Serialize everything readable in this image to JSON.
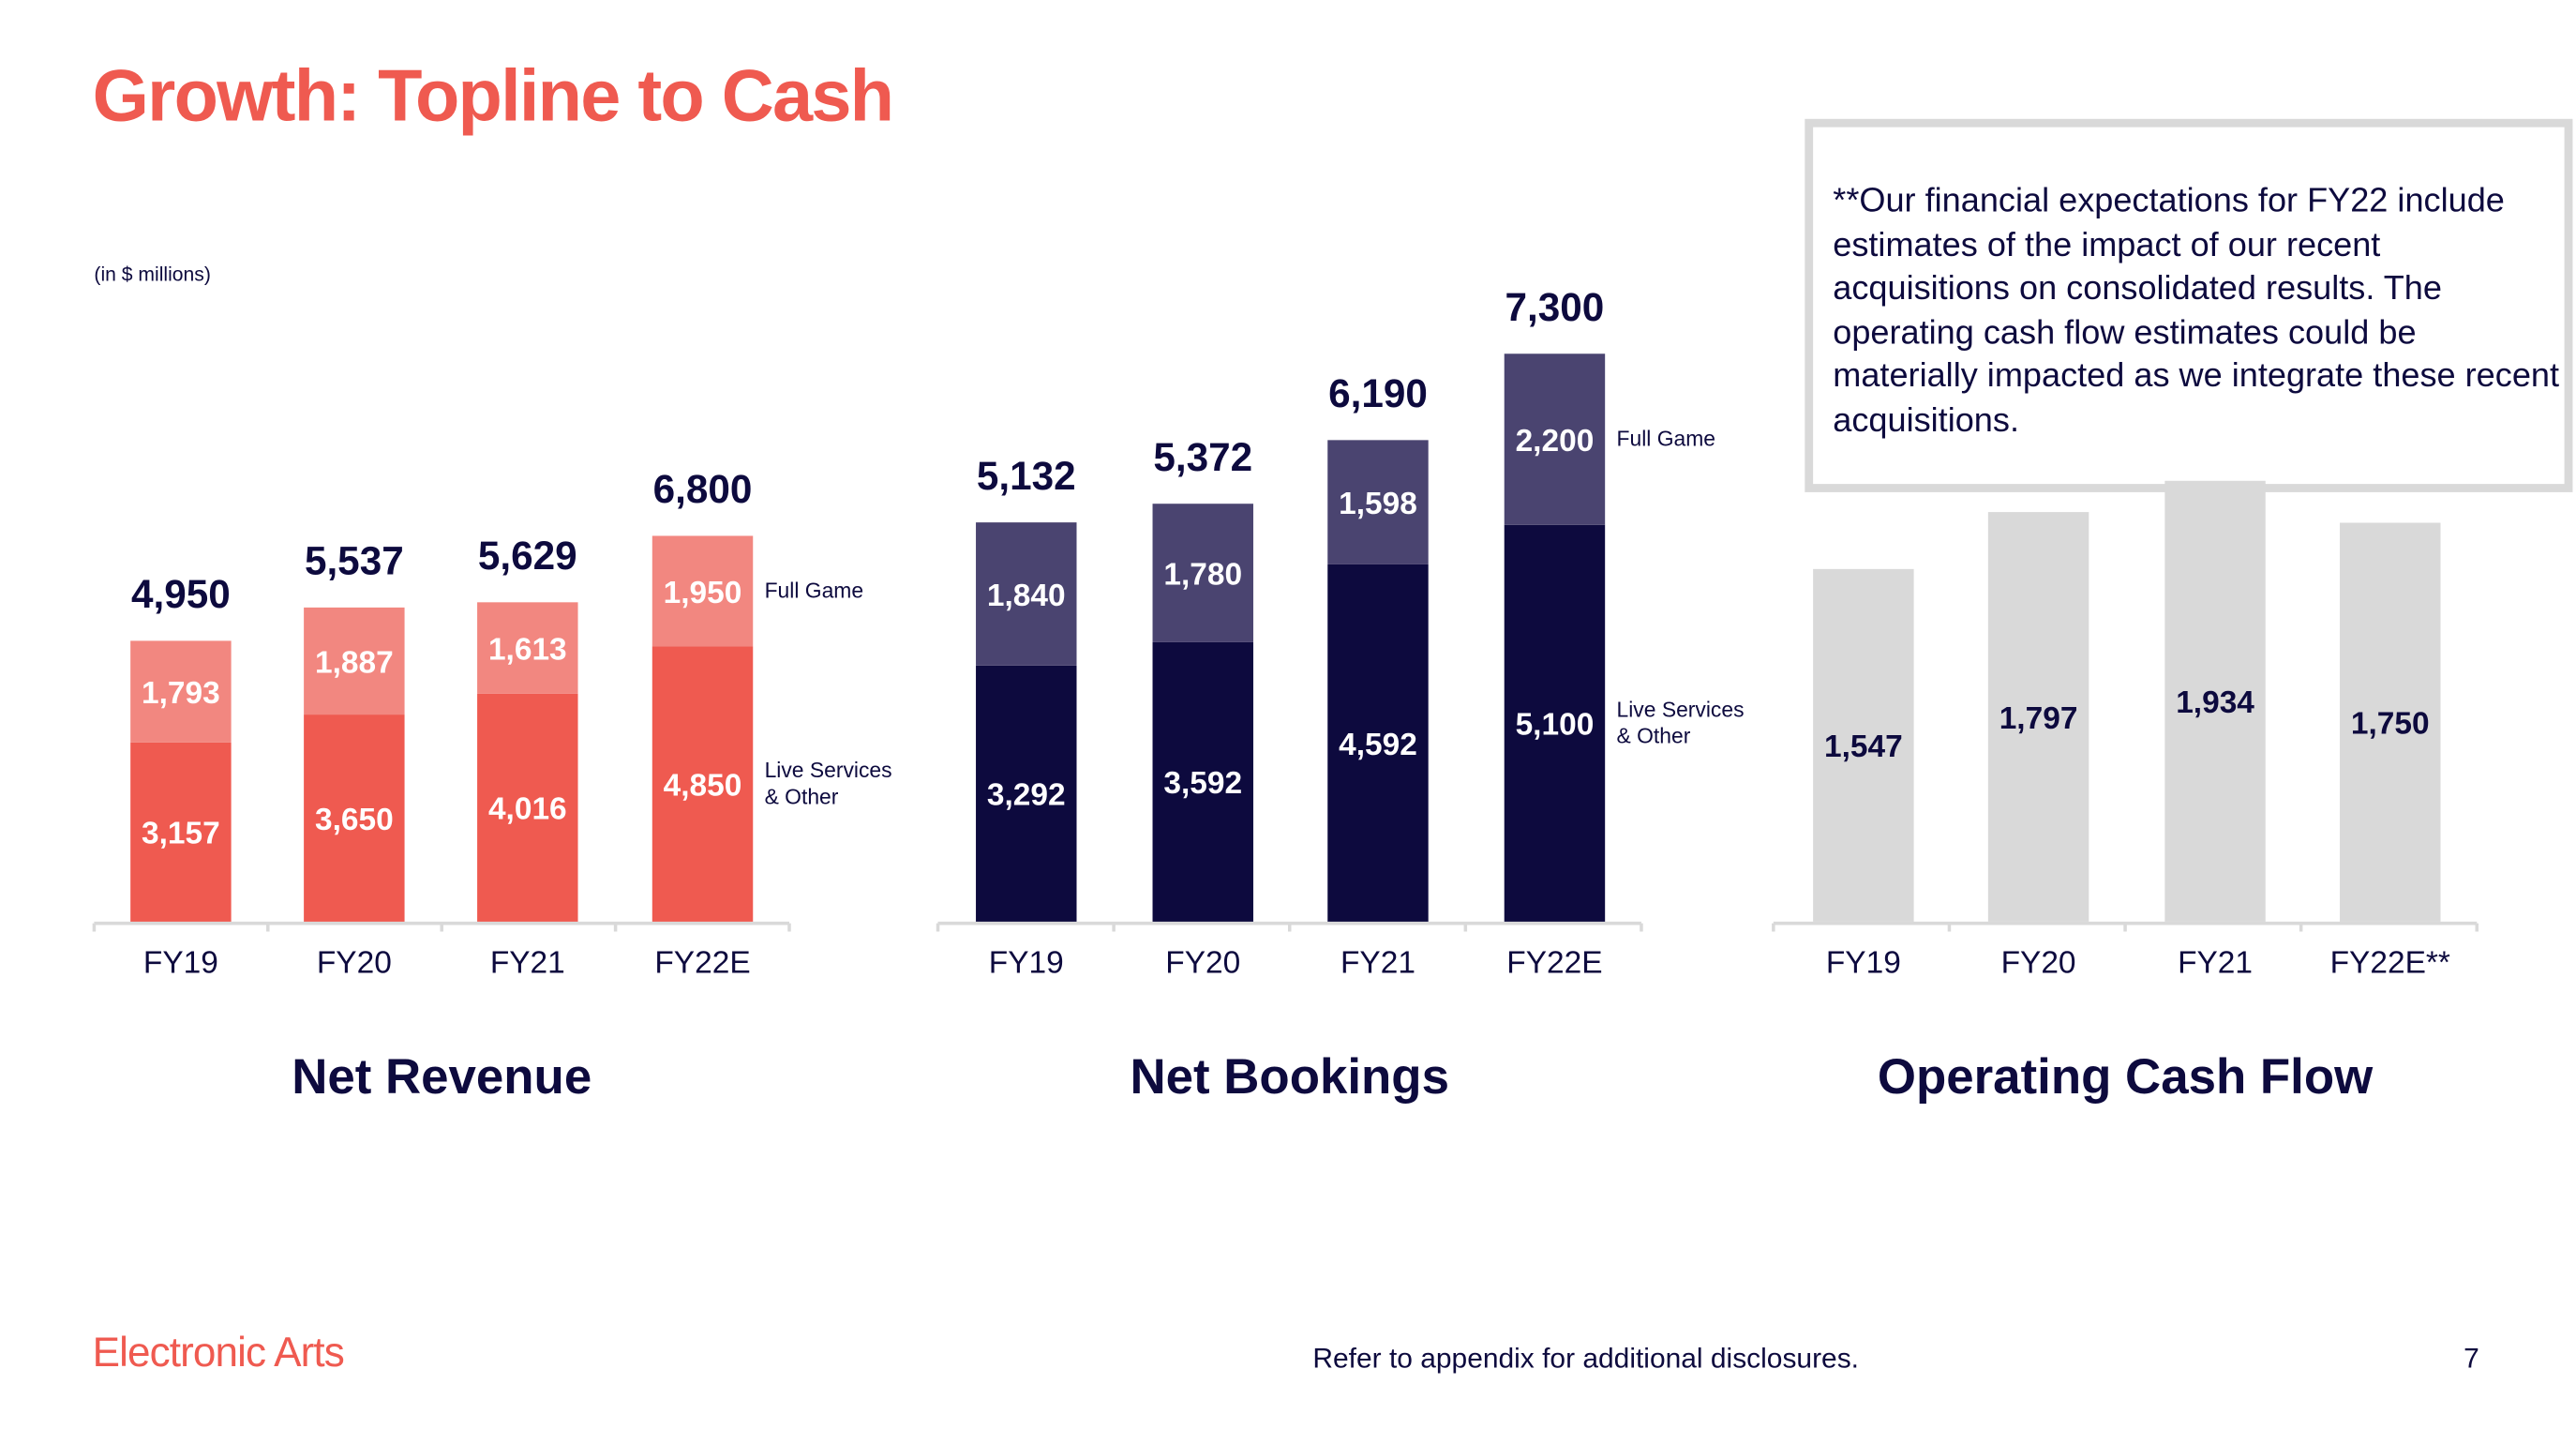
{
  "title": "Growth: Topline to Cash",
  "units_note": "(in $ millions)",
  "disclaimer_box": "**Our financial expectations for FY22 include estimates of the impact of our recent acquisitions on consolidated results. The operating cash flow estimates could be materially impacted as we integrate these recent acquisitions.",
  "footer": {
    "brand": "Electronic Arts",
    "note": "Refer to appendix for additional disclosures.",
    "page_number": "7"
  },
  "colors": {
    "accent": "#EF5A50",
    "accent_light": "#F28780",
    "navy": "#0D0A3E",
    "purple": "#4A4470",
    "gray": "#D9D9D9"
  },
  "chart_data": [
    {
      "type": "bar",
      "stacked": true,
      "title": "Net Revenue",
      "categories": [
        "FY19",
        "FY20",
        "FY21",
        "FY22E"
      ],
      "totals": [
        "4,950",
        "5,537",
        "5,629",
        "6,800"
      ],
      "series": [
        {
          "name": "Live Services & Other",
          "values": [
            3157,
            3650,
            4016,
            4850
          ],
          "color": "#EF5A50"
        },
        {
          "name": "Full Game",
          "values": [
            1793,
            1887,
            1613,
            1950
          ],
          "color": "#F28780"
        }
      ],
      "ylim": [
        0,
        6800
      ],
      "grid": false,
      "legend": "right of last bar"
    },
    {
      "type": "bar",
      "stacked": true,
      "title": "Net Bookings",
      "categories": [
        "FY19",
        "FY20",
        "FY21",
        "FY22E"
      ],
      "totals": [
        "5,132",
        "5,372",
        "6,190",
        "7,300"
      ],
      "series": [
        {
          "name": "Live Services & Other",
          "values": [
            3292,
            3592,
            4592,
            5100
          ],
          "color": "#0D0A3E"
        },
        {
          "name": "Full Game",
          "values": [
            1840,
            1780,
            1598,
            2200
          ],
          "color": "#4A4470"
        }
      ],
      "ylim": [
        0,
        7300
      ],
      "grid": false,
      "legend": "right of last bar"
    },
    {
      "type": "bar",
      "stacked": false,
      "title": "Operating Cash Flow",
      "categories": [
        "FY19",
        "FY20",
        "FY21",
        "FY22E**"
      ],
      "series": [
        {
          "values": [
            1547,
            1797,
            1934,
            1750
          ],
          "color": "#D9D9D9"
        }
      ],
      "ylim": [
        0,
        1934
      ],
      "grid": false
    }
  ]
}
